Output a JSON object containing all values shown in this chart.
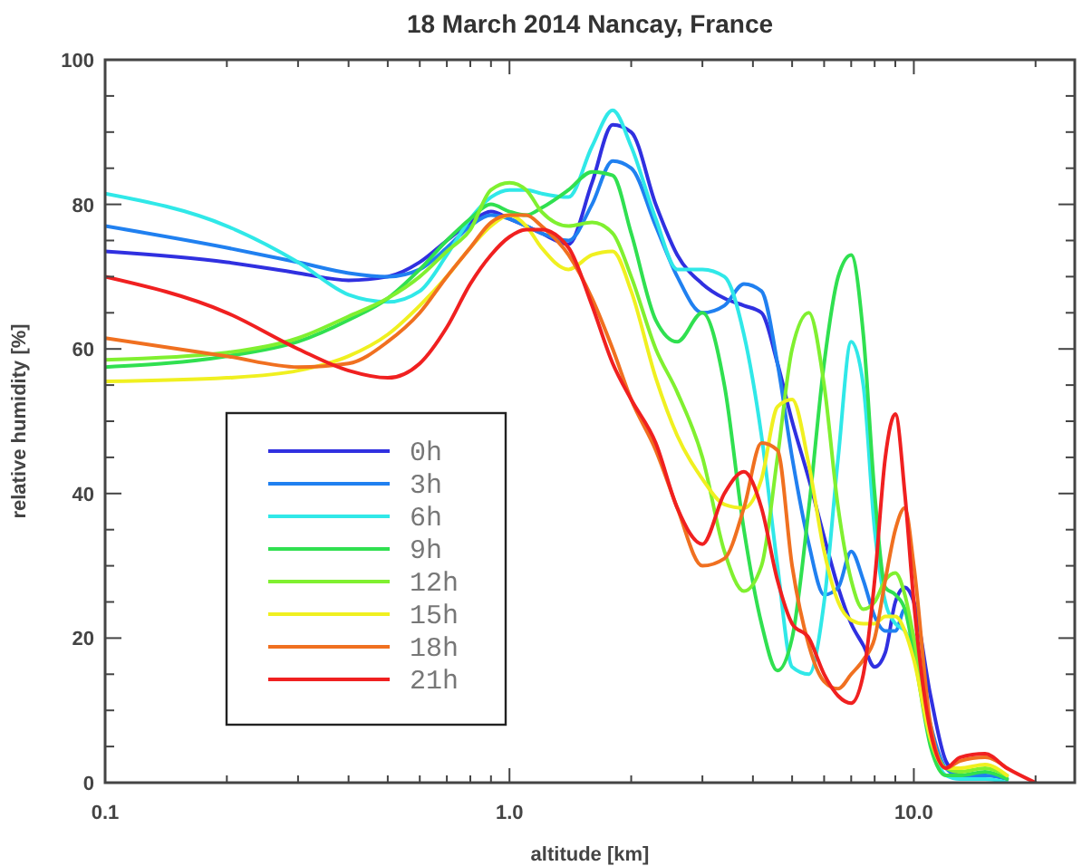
{
  "chart_data": {
    "type": "line",
    "title": "18 March 2014 Nancay, France",
    "xlabel": "altitude [km]",
    "ylabel": "relative humidity [%]",
    "log": "x",
    "legend": "bottom left",
    "grid": false,
    "line_style": "solid",
    "marker": "none",
    "xlim": [
      0.1,
      25
    ],
    "ylim": [
      0,
      100
    ],
    "xticks": [
      0.1,
      {
        "value": 0.2,
        "label": null
      },
      {
        "value": 0.3,
        "label": null
      },
      {
        "value": 0.4,
        "label": null
      },
      {
        "value": 0.5,
        "label": null
      },
      {
        "value": 0.6,
        "label": null
      },
      {
        "value": 0.7,
        "label": null
      },
      {
        "value": 0.8,
        "label": null
      },
      {
        "value": 0.9,
        "label": null
      },
      {
        "value": 1,
        "label": "1.0"
      },
      {
        "value": 2,
        "label": null
      },
      {
        "value": 3,
        "label": null
      },
      {
        "value": 4,
        "label": null
      },
      {
        "value": 5,
        "label": null
      },
      {
        "value": 6,
        "label": null
      },
      {
        "value": 7,
        "label": null
      },
      {
        "value": 8,
        "label": null
      },
      {
        "value": 9,
        "label": null
      },
      {
        "value": 10,
        "label": "10.0"
      },
      {
        "value": 20,
        "label": null
      }
    ],
    "yticks": [
      0,
      {
        "value": 5,
        "label": null
      },
      {
        "value": 10,
        "label": null
      },
      {
        "value": 15,
        "label": null
      },
      20,
      {
        "value": 25,
        "label": null
      },
      {
        "value": 30,
        "label": null
      },
      {
        "value": 35,
        "label": null
      },
      40,
      {
        "value": 45,
        "label": null
      },
      {
        "value": 50,
        "label": null
      },
      {
        "value": 55,
        "label": null
      },
      60,
      {
        "value": 65,
        "label": null
      },
      {
        "value": 70,
        "label": null
      },
      {
        "value": 75,
        "label": null
      },
      80,
      {
        "value": 85,
        "label": null
      },
      {
        "value": 90,
        "label": null
      },
      {
        "value": 95,
        "label": null
      },
      100
    ],
    "x": [
      0.1,
      0.2,
      0.3,
      0.4,
      0.5,
      0.6,
      0.7,
      0.8,
      0.9,
      1.0,
      1.1,
      1.2,
      1.4,
      1.6,
      1.8,
      2.0,
      2.3,
      2.6,
      3.0,
      3.4,
      3.8,
      4.2,
      4.6,
      5.0,
      5.5,
      6.0,
      6.5,
      7.0,
      7.5,
      8.0,
      8.5,
      9.0,
      9.5,
      10,
      11,
      12,
      13,
      15,
      17,
      20
    ],
    "series": [
      {
        "name": "0h",
        "color": "#3030e0",
        "values": [
          73.5,
          72,
          70.5,
          69.5,
          70,
          72,
          75,
          77.5,
          79,
          78,
          77,
          76,
          74.5,
          83,
          91,
          90,
          80,
          73,
          69,
          67,
          66,
          65,
          58,
          50,
          42,
          34,
          27,
          22,
          19,
          16,
          18,
          25,
          27,
          25,
          12,
          3,
          1,
          1,
          null,
          null
        ]
      },
      {
        "name": "3h",
        "color": "#2080f0",
        "values": [
          77,
          74,
          72,
          70.5,
          70,
          71,
          74,
          77,
          78.5,
          78,
          77,
          76,
          75,
          80,
          86,
          85,
          77,
          70,
          65,
          66,
          69,
          68,
          58,
          45,
          33,
          26,
          27,
          32,
          28,
          23,
          21,
          21,
          24,
          20,
          8,
          2,
          1,
          1,
          0.5,
          null
        ]
      },
      {
        "name": "6h",
        "color": "#30e8e8",
        "values": [
          81.5,
          77,
          72,
          67.5,
          66.5,
          68,
          73,
          78,
          81,
          82,
          82,
          81.5,
          81,
          88,
          93,
          88,
          78,
          71,
          71,
          70,
          62,
          48,
          30,
          16,
          15,
          25,
          45,
          61,
          55,
          35,
          25,
          22,
          21,
          18,
          6,
          1,
          0.5,
          0.5,
          0,
          null
        ]
      },
      {
        "name": "9h",
        "color": "#30e050",
        "values": [
          57.5,
          59,
          61,
          64,
          67,
          71,
          75,
          78,
          80,
          79,
          78.5,
          79.5,
          82,
          84.5,
          84,
          76,
          64,
          61,
          65,
          55,
          35,
          22,
          15.5,
          20,
          38,
          58,
          70,
          73,
          62,
          40,
          27,
          26,
          24,
          18,
          5,
          1,
          1,
          1.5,
          0.5,
          null
        ]
      },
      {
        "name": "12h",
        "color": "#80f030",
        "values": [
          58.5,
          59.5,
          61.5,
          64.5,
          67,
          70,
          73.5,
          76.5,
          82,
          83,
          82,
          79,
          77,
          77.5,
          76,
          70,
          60,
          54,
          45,
          32,
          26.5,
          30,
          45,
          60,
          65,
          55,
          38,
          28,
          24,
          25,
          28,
          29,
          26,
          20,
          7,
          2,
          1.5,
          2,
          1,
          null
        ]
      },
      {
        "name": "15h",
        "color": "#f0f020",
        "values": [
          55.5,
          56,
          57,
          59,
          62,
          66,
          70,
          74,
          77,
          78.5,
          77,
          74,
          71,
          73,
          73.5,
          68,
          56,
          48,
          42,
          38.5,
          38,
          42,
          52,
          53,
          44,
          32,
          25,
          22.5,
          22,
          22,
          23,
          23,
          21,
          17,
          6,
          2,
          2,
          2.5,
          1,
          null
        ]
      },
      {
        "name": "18h",
        "color": "#f07020",
        "values": [
          61.5,
          59,
          57.5,
          58,
          61,
          65,
          70,
          74,
          77.5,
          78.5,
          78.5,
          77,
          73,
          67,
          60,
          53,
          46,
          38,
          30,
          31,
          38,
          47,
          46,
          30,
          19,
          14,
          13,
          15,
          17,
          20,
          28,
          35,
          38,
          30,
          8,
          2,
          3,
          3.5,
          2,
          null
        ]
      },
      {
        "name": "21h",
        "color": "#f02020",
        "values": [
          70,
          65,
          60,
          57,
          56,
          58,
          63,
          69,
          73,
          75.5,
          76.5,
          76.5,
          74,
          66,
          58,
          53,
          47,
          38,
          33,
          40,
          43,
          38,
          28,
          22,
          20,
          15,
          12,
          11,
          15,
          28,
          45,
          51,
          40,
          25,
          7,
          2,
          3.5,
          4,
          2,
          0
        ]
      }
    ]
  }
}
